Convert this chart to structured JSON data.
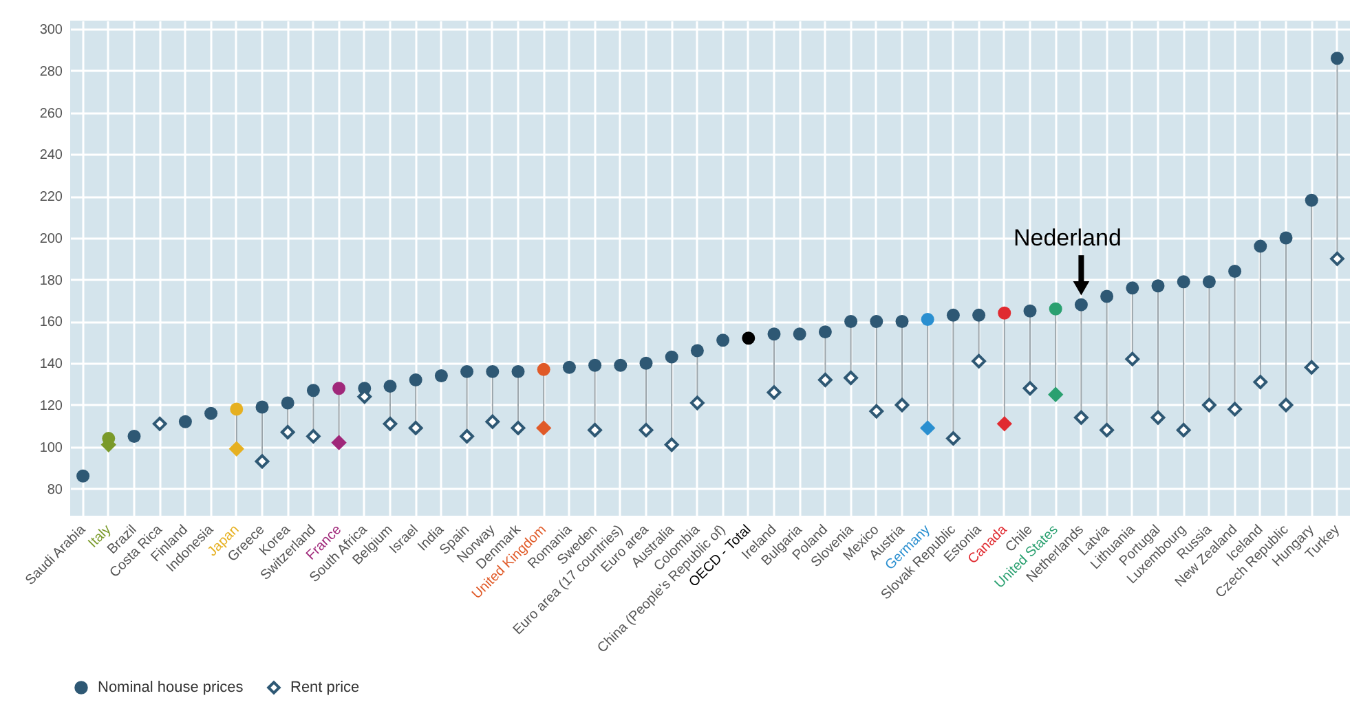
{
  "chart_data": {
    "type": "scatter",
    "categories": [
      "Saudi Arabia",
      "Italy",
      "Brazil",
      "Costa Rica",
      "Finland",
      "Indonesia",
      "Japan",
      "Greece",
      "Korea",
      "Switzerland",
      "France",
      "South Africa",
      "Belgium",
      "Israel",
      "India",
      "Spain",
      "Norway",
      "Denmark",
      "United Kingdom",
      "Romania",
      "Sweden",
      "Euro area (17 countries)",
      "Euro area",
      "Australia",
      "Colombia",
      "China (People's Republic of)",
      "OECD - Total",
      "Ireland",
      "Bulgaria",
      "Poland",
      "Slovenia",
      "Mexico",
      "Austria",
      "Germany",
      "Slovak Republic",
      "Estonia",
      "Canada",
      "Chile",
      "United States",
      "Netherlands",
      "Latvia",
      "Lithuania",
      "Portugal",
      "Luxembourg",
      "Russia",
      "New Zealand",
      "Iceland",
      "Czech Republic",
      "Hungary",
      "Turkey"
    ],
    "series": [
      {
        "name": "Nominal house prices",
        "marker": "circle",
        "color": "#2e5874",
        "values": [
          86,
          104,
          105,
          null,
          112,
          116,
          118,
          119,
          121,
          127,
          128,
          128,
          129,
          132,
          134,
          136,
          136,
          136,
          137,
          138,
          139,
          139,
          140,
          143,
          146,
          151,
          152,
          154,
          154,
          155,
          160,
          160,
          160,
          161,
          163,
          163,
          164,
          165,
          166,
          168,
          172,
          176,
          177,
          179,
          179,
          184,
          196,
          200,
          218,
          286
        ],
        "colors": [
          "#2e5874",
          "#7a9a2a",
          "#2e5874",
          "#2e5874",
          "#2e5874",
          "#2e5874",
          "#e6b020",
          "#2e5874",
          "#2e5874",
          "#2e5874",
          "#a0287a",
          "#2e5874",
          "#2e5874",
          "#2e5874",
          "#2e5874",
          "#2e5874",
          "#2e5874",
          "#2e5874",
          "#e05a28",
          "#2e5874",
          "#2e5874",
          "#2e5874",
          "#2e5874",
          "#2e5874",
          "#2e5874",
          "#2e5874",
          "#000000",
          "#2e5874",
          "#2e5874",
          "#2e5874",
          "#2e5874",
          "#2e5874",
          "#2e5874",
          "#2a8fd0",
          "#2e5874",
          "#2e5874",
          "#e02a30",
          "#2e5874",
          "#2aa070",
          "#2e5874",
          "#2e5874",
          "#2e5874",
          "#2e5874",
          "#2e5874",
          "#2e5874",
          "#2e5874",
          "#2e5874",
          "#2e5874",
          "#2e5874",
          "#2e5874"
        ]
      },
      {
        "name": "Rent price",
        "marker": "diamond",
        "color": "#2e5874",
        "values": [
          null,
          101,
          null,
          111,
          null,
          null,
          99,
          93,
          107,
          105,
          102,
          124,
          111,
          109,
          null,
          105,
          112,
          109,
          109,
          null,
          108,
          null,
          108,
          101,
          121,
          null,
          null,
          126,
          null,
          132,
          133,
          117,
          120,
          109,
          104,
          141,
          111,
          128,
          125,
          114,
          108,
          142,
          114,
          108,
          120,
          118,
          131,
          120,
          138,
          190
        ],
        "colors": [
          "#2e5874",
          "#7a9a2a",
          "#2e5874",
          "#2e5874",
          "#2e5874",
          "#2e5874",
          "#e6b020",
          "#2e5874",
          "#2e5874",
          "#2e5874",
          "#a0287a",
          "#2e5874",
          "#2e5874",
          "#2e5874",
          "#2e5874",
          "#2e5874",
          "#2e5874",
          "#2e5874",
          "#e05a28",
          "#2e5874",
          "#2e5874",
          "#2e5874",
          "#2e5874",
          "#2e5874",
          "#2e5874",
          "#2e5874",
          "#000000",
          "#2e5874",
          "#2e5874",
          "#2e5874",
          "#2e5874",
          "#2e5874",
          "#2e5874",
          "#2a8fd0",
          "#2e5874",
          "#2e5874",
          "#e02a30",
          "#2e5874",
          "#2aa070",
          "#2e5874",
          "#2e5874",
          "#2e5874",
          "#2e5874",
          "#2e5874",
          "#2e5874",
          "#2e5874",
          "#2e5874",
          "#2e5874",
          "#2e5874",
          "#2e5874"
        ]
      }
    ],
    "ylim": [
      67,
      304
    ],
    "yticks": [
      80,
      100,
      120,
      140,
      160,
      180,
      200,
      220,
      240,
      260,
      280,
      300
    ],
    "grid": true,
    "legend": "bottom left",
    "annotations": [
      {
        "text": "Nederland",
        "x": "Netherlands",
        "y": 168
      }
    ]
  }
}
